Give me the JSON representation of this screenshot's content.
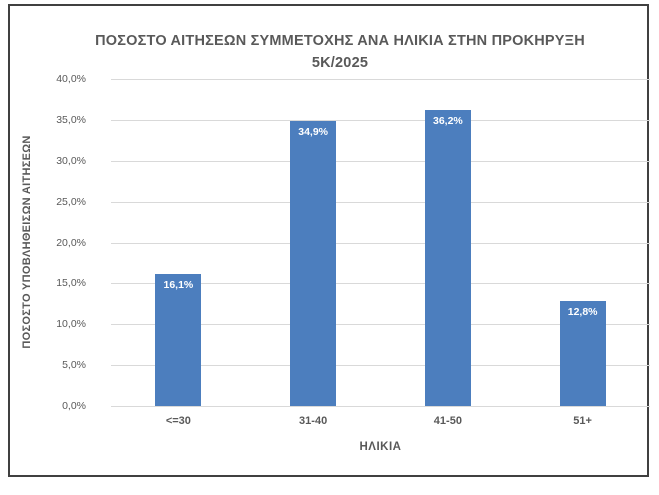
{
  "chart_data": {
    "type": "bar",
    "title": "ΠΟΣΟΣΤΟ ΑΙΤΗΣΕΩΝ ΣΥΜΜΕΤΟΧΗΣ ΑΝΑ ΗΛΙΚΙΑ ΣΤΗΝ ΠΡΟΚΗΡΥΞΗ 5Κ/2025",
    "categories": [
      "<=30",
      "31-40",
      "41-50",
      "51+"
    ],
    "values": [
      16.1,
      34.9,
      36.2,
      12.8
    ],
    "value_labels": [
      "16,1%",
      "34,9%",
      "36,2%",
      "12,8%"
    ],
    "xlabel": "ΗΛΙΚΙΑ",
    "ylabel": "ΠΟΣΟΣΤΟ ΥΠΟΒΛΗΘΕΙΣΩΝ ΑΙΤΗΣΕΩΝ",
    "ylim": [
      0,
      40
    ],
    "ytick_step": 5,
    "ytick_labels": [
      "0,0%",
      "5,0%",
      "10,0%",
      "15,0%",
      "20,0%",
      "25,0%",
      "30,0%",
      "35,0%",
      "40,0%"
    ],
    "grid": true,
    "legend": false,
    "colors": {
      "bar_fill": "#4c7ebe",
      "bar_label": "#ffffff",
      "text": "#595959",
      "gridline": "#d9d9d9",
      "frame_border": "#404040"
    }
  }
}
